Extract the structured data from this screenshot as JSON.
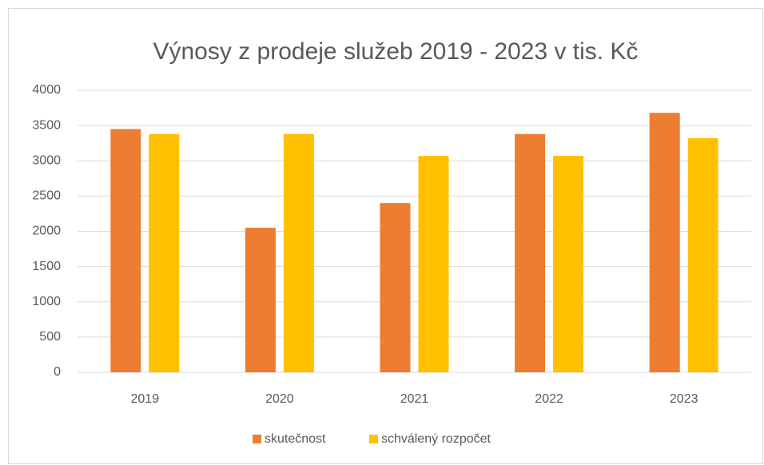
{
  "chart_data": {
    "type": "bar",
    "title": "Výnosy z prodeje služeb 2019 - 2023 v tis. Kč",
    "categories": [
      "2019",
      "2020",
      "2021",
      "2022",
      "2023"
    ],
    "series": [
      {
        "name": "skutečnost",
        "color": "#ed7d31",
        "values": [
          3450,
          2050,
          2400,
          3380,
          3680
        ]
      },
      {
        "name": "schválený rozpočet",
        "color": "#ffc000",
        "values": [
          3380,
          3380,
          3070,
          3070,
          3320
        ]
      }
    ],
    "ylim": [
      0,
      4000
    ],
    "yticks": [
      0,
      500,
      1000,
      1500,
      2000,
      2500,
      3000,
      3500,
      4000
    ],
    "grid": true,
    "legend": "bottom"
  }
}
